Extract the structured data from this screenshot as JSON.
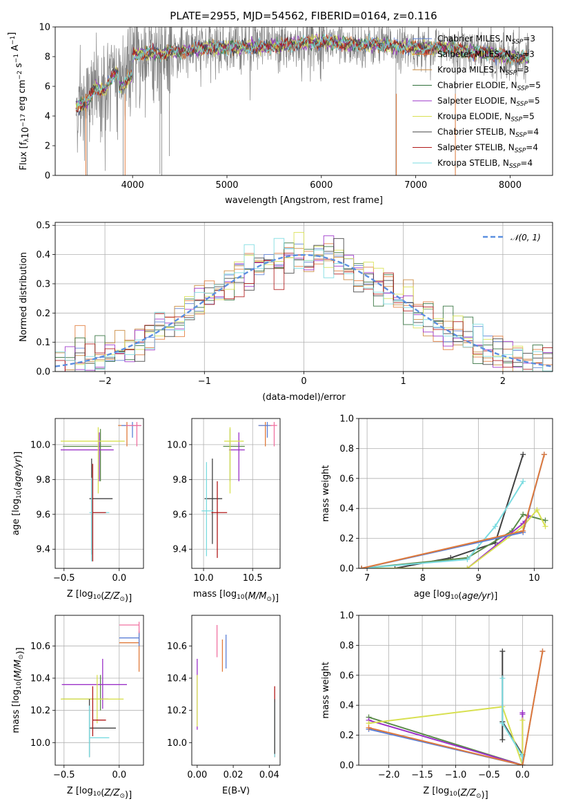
{
  "chart_data": [
    {
      "id": "spectrum",
      "type": "line",
      "title": "PLATE=2955, MJD=54562, FIBERID=0164, z=0.116",
      "xlabel": "wavelength [Angstrom, rest frame]",
      "ylabel": "Flux [f_λ 10^{-17} erg cm^{-2} s^{-1} A^{-1}]",
      "xlim": [
        3180,
        8450
      ],
      "ylim": [
        0,
        10
      ],
      "xticks": [
        4000,
        5000,
        6000,
        7000,
        8000
      ],
      "yticks": [
        0,
        2,
        4,
        6,
        8,
        10
      ],
      "grid": false,
      "legend_position": "top-right",
      "series": [
        {
          "name": "Chabrier MILES, N_SSP=3",
          "color": "#5b7fd6"
        },
        {
          "name": "Salpeter MILES, N_SSP=3",
          "color": "#e07a3a"
        },
        {
          "name": "Kroupa MILES, N_SSP=3",
          "color": "#c8873a"
        },
        {
          "name": "Chabrier ELODIE, N_SSP=5",
          "color": "#2f6f3a"
        },
        {
          "name": "Salpeter ELODIE, N_SSP=5",
          "color": "#9b30c8"
        },
        {
          "name": "Kroupa ELODIE, N_SSP=5",
          "color": "#d8e050"
        },
        {
          "name": "Chabrier STELIB, N_SSP=4",
          "color": "#404040"
        },
        {
          "name": "Salpeter STELIB, N_SSP=4",
          "color": "#b01818"
        },
        {
          "name": "Kroupa STELIB, N_SSP=4",
          "color": "#7adbe0"
        }
      ],
      "data_color": "#808080",
      "model_curve": {
        "x": [
          3400,
          3500,
          3600,
          3700,
          3800,
          3900,
          4000,
          4100,
          4200,
          4300,
          4400,
          4600,
          4800,
          5000,
          5200,
          5400,
          5600,
          5800,
          6000,
          6200,
          6400,
          6600,
          6800,
          7000,
          7200,
          7400,
          7600,
          7800,
          8000,
          8200
        ],
        "y": [
          4.6,
          4.8,
          5.9,
          5.7,
          6.8,
          7.2,
          8.0,
          8.2,
          8.3,
          8.1,
          8.3,
          8.4,
          8.6,
          8.6,
          8.7,
          8.6,
          8.8,
          8.9,
          9.0,
          8.9,
          8.8,
          8.8,
          8.7,
          8.6,
          8.6,
          8.5,
          8.3,
          8.2,
          8.0,
          7.9
        ]
      }
    },
    {
      "id": "residuals",
      "type": "line",
      "xlabel": "(data-model)/error",
      "ylabel": "Normed distribution",
      "xlim": [
        -2.5,
        2.5
      ],
      "ylim": [
        0,
        0.51
      ],
      "xticks": [
        -2,
        -1,
        0,
        1,
        2
      ],
      "yticks": [
        0.0,
        0.1,
        0.2,
        0.3,
        0.4,
        0.5
      ],
      "grid": true,
      "legend_position": "top-right",
      "legend": [
        "𝒩(0, 1)"
      ],
      "normal_color": "#5b8fe0"
    },
    {
      "id": "age-vs-Z",
      "type": "scatter",
      "xlabel": "Z [log10(Z/Z⊙)]",
      "ylabel": "age  [log10(age/yr)]",
      "xlim": [
        -0.58,
        0.22
      ],
      "ylim": [
        9.29,
        10.15
      ],
      "xticks": [
        -0.5,
        0.0
      ],
      "yticks": [
        9.4,
        9.6,
        9.8,
        10.0
      ],
      "grid": true,
      "points": [
        {
          "x": 0.07,
          "y": 10.11,
          "xerr": [
            0.08,
            0.13
          ],
          "yerr": [
            0.12,
            0.02
          ],
          "color": "#e07a3a"
        },
        {
          "x": 0.12,
          "y": 10.11,
          "xerr": [
            0.1,
            0.08
          ],
          "yerr": [
            0.07,
            0.02
          ],
          "color": "#5b7fd6"
        },
        {
          "x": 0.16,
          "y": 10.11,
          "xerr": [
            0.1,
            0.04
          ],
          "yerr": [
            0.12,
            0.02
          ],
          "color": "#f070a0"
        },
        {
          "x": -0.17,
          "y": 9.99,
          "xerr": [
            0.34,
            0.1
          ],
          "yerr": [
            0.2,
            0.1
          ],
          "color": "#5a8a4a"
        },
        {
          "x": -0.18,
          "y": 9.97,
          "xerr": [
            0.35,
            0.13
          ],
          "yerr": [
            0.18,
            0.1
          ],
          "color": "#9b30c8"
        },
        {
          "x": -0.19,
          "y": 10.02,
          "xerr": [
            0.34,
            0.24
          ],
          "yerr": [
            0.3,
            0.08
          ],
          "color": "#d8e050"
        },
        {
          "x": -0.25,
          "y": 9.69,
          "xerr": [
            0.02,
            0.19
          ],
          "yerr": [
            0.32,
            0.23
          ],
          "color": "#404040"
        },
        {
          "x": -0.25,
          "y": 9.61,
          "xerr": [
            0.02,
            0.16
          ],
          "yerr": [
            0.28,
            0.2
          ],
          "color": "#7adbe0"
        },
        {
          "x": -0.24,
          "y": 9.61,
          "xerr": [
            0.0,
            0.12
          ],
          "yerr": [
            0.28,
            0.28
          ],
          "color": "#b01818"
        }
      ]
    },
    {
      "id": "age-vs-mass",
      "type": "scatter",
      "xlabel": "mass [log10(M/M⊙)]",
      "ylabel": "",
      "xlim": [
        9.88,
        10.78
      ],
      "ylim": [
        9.29,
        10.15
      ],
      "xticks": [
        10.0,
        10.5
      ],
      "yticks": [
        9.4,
        9.6,
        9.8,
        10.0
      ],
      "grid": true,
      "points": [
        {
          "x": 10.63,
          "y": 10.11,
          "xerr": [
            0.07,
            0.07
          ],
          "yerr": [
            0.12,
            0.02
          ],
          "color": "#e07a3a"
        },
        {
          "x": 10.65,
          "y": 10.11,
          "xerr": [
            0.09,
            0.04
          ],
          "yerr": [
            0.07,
            0.02
          ],
          "color": "#5b7fd6"
        },
        {
          "x": 10.72,
          "y": 10.11,
          "xerr": [
            0.04,
            0.03
          ],
          "yerr": [
            0.12,
            0.02
          ],
          "color": "#f070a0"
        },
        {
          "x": 10.27,
          "y": 9.99,
          "xerr": [
            0.07,
            0.15
          ],
          "yerr": [
            0.2,
            0.1
          ],
          "color": "#5a8a4a"
        },
        {
          "x": 10.36,
          "y": 9.97,
          "xerr": [
            0.1,
            0.06
          ],
          "yerr": [
            0.18,
            0.1
          ],
          "color": "#9b30c8"
        },
        {
          "x": 10.27,
          "y": 10.02,
          "xerr": [
            0.06,
            0.14
          ],
          "yerr": [
            0.3,
            0.08
          ],
          "color": "#d8e050"
        },
        {
          "x": 10.09,
          "y": 9.69,
          "xerr": [
            0.08,
            0.1
          ],
          "yerr": [
            0.26,
            0.23
          ],
          "color": "#404040"
        },
        {
          "x": 10.03,
          "y": 9.62,
          "xerr": [
            0.05,
            0.07
          ],
          "yerr": [
            0.26,
            0.28
          ],
          "color": "#7adbe0"
        },
        {
          "x": 10.14,
          "y": 9.61,
          "xerr": [
            0.06,
            0.1
          ],
          "yerr": [
            0.26,
            0.18
          ],
          "color": "#b01818"
        }
      ]
    },
    {
      "id": "weight-vs-age",
      "type": "line",
      "xlabel": "age  [log10(age/yr)]",
      "ylabel": "mass weight",
      "xlim": [
        6.85,
        10.33
      ],
      "ylim": [
        0,
        1.0
      ],
      "xticks": [
        7,
        8,
        9,
        10
      ],
      "yticks": [
        0.0,
        0.2,
        0.4,
        0.6,
        0.8,
        1.0
      ],
      "grid": true,
      "series": [
        {
          "color": "#404040",
          "x": [
            7.5,
            8.5,
            9.3,
            9.8
          ],
          "y": [
            0.0,
            0.07,
            0.17,
            0.76
          ]
        },
        {
          "color": "#5a8a4a",
          "x": [
            6.9,
            8.8,
            9.6,
            9.8,
            10.2
          ],
          "y": [
            0.0,
            0.07,
            0.25,
            0.36,
            0.32
          ]
        },
        {
          "color": "#9b30c8",
          "x": [
            6.9,
            8.8,
            9.8,
            9.9
          ],
          "y": [
            0.0,
            0.0,
            0.3,
            0.35
          ]
        },
        {
          "color": "#d8e050",
          "x": [
            6.9,
            8.8,
            9.8,
            10.05,
            10.2
          ],
          "y": [
            0.0,
            0.0,
            0.28,
            0.39,
            0.28
          ]
        },
        {
          "color": "#7adbe0",
          "x": [
            6.9,
            8.8,
            9.3,
            9.8
          ],
          "y": [
            0.0,
            0.06,
            0.28,
            0.58
          ]
        },
        {
          "color": "#5b7fd6",
          "x": [
            6.9,
            9.8,
            10.18
          ],
          "y": [
            0.0,
            0.24,
            0.76
          ]
        },
        {
          "color": "#e07a3a",
          "x": [
            6.9,
            9.8,
            10.18
          ],
          "y": [
            0.0,
            0.25,
            0.76
          ]
        }
      ]
    },
    {
      "id": "mass-vs-Z",
      "type": "scatter",
      "xlabel": "Z [log10(Z/Z⊙)]",
      "ylabel": "mass [log10(M/M⊙)]",
      "xlim": [
        -0.58,
        0.22
      ],
      "ylim": [
        9.86,
        10.79
      ],
      "xticks": [
        -0.5,
        0.0
      ],
      "yticks": [
        10.0,
        10.2,
        10.4,
        10.6
      ],
      "grid": true,
      "points": [
        {
          "x": 0.18,
          "y": 10.62,
          "xerr": [
            0.18,
            0.0
          ],
          "yerr": [
            0.18,
            0.07
          ],
          "color": "#e07a3a"
        },
        {
          "x": 0.18,
          "y": 10.65,
          "xerr": [
            0.18,
            0.0
          ],
          "yerr": [
            0.05,
            0.04
          ],
          "color": "#5b7fd6"
        },
        {
          "x": 0.18,
          "y": 10.73,
          "xerr": [
            0.18,
            0.0
          ],
          "yerr": [
            0.05,
            0.02
          ],
          "color": "#f070a0"
        },
        {
          "x": -0.17,
          "y": 10.27,
          "xerr": [
            0.35,
            0.07
          ],
          "yerr": [
            0.07,
            0.15
          ],
          "color": "#5a8a4a"
        },
        {
          "x": -0.15,
          "y": 10.36,
          "xerr": [
            0.37,
            0.22
          ],
          "yerr": [
            0.15,
            0.16
          ],
          "color": "#9b30c8"
        },
        {
          "x": -0.2,
          "y": 10.27,
          "xerr": [
            0.33,
            0.24
          ],
          "yerr": [
            0.15,
            0.15
          ],
          "color": "#d8e050"
        },
        {
          "x": -0.27,
          "y": 10.09,
          "xerr": [
            0.0,
            0.24
          ],
          "yerr": [
            0.18,
            0.18
          ],
          "color": "#404040"
        },
        {
          "x": -0.27,
          "y": 10.03,
          "xerr": [
            0.0,
            0.18
          ],
          "yerr": [
            0.12,
            0.2
          ],
          "color": "#7adbe0"
        },
        {
          "x": -0.24,
          "y": 10.14,
          "xerr": [
            0.0,
            0.12
          ],
          "yerr": [
            0.1,
            0.21
          ],
          "color": "#b01818"
        }
      ]
    },
    {
      "id": "mass-vs-EBV",
      "type": "scatter",
      "xlabel": "E(B-V)",
      "ylabel": "",
      "xlim": [
        -0.003,
        0.046
      ],
      "ylim": [
        9.86,
        10.79
      ],
      "xticks": [
        0.0,
        0.02,
        0.04
      ],
      "yticks": [
        10.0,
        10.2,
        10.4,
        10.6
      ],
      "grid": false,
      "points": [
        {
          "x": 0.0,
          "y": 10.3,
          "yerr": [
            0.22,
            0.22
          ],
          "color": "#9b30c8"
        },
        {
          "x": 0.0,
          "y": 10.28,
          "yerr": [
            0.18,
            0.14
          ],
          "color": "#d8e050"
        },
        {
          "x": 0.011,
          "y": 10.63,
          "yerr": [
            0.1,
            0.1
          ],
          "color": "#f070a0"
        },
        {
          "x": 0.014,
          "y": 10.55,
          "yerr": [
            0.11,
            0.09
          ],
          "color": "#e07a3a"
        },
        {
          "x": 0.016,
          "y": 10.56,
          "yerr": [
            0.1,
            0.11
          ],
          "color": "#5b7fd6"
        },
        {
          "x": 0.043,
          "y": 10.14,
          "yerr": [
            0.23,
            0.21
          ],
          "color": "#b01818"
        },
        {
          "x": 0.043,
          "y": 10.03,
          "yerr": [
            0.12,
            0.22
          ],
          "color": "#7adbe0"
        },
        {
          "x": 0.043,
          "y": 10.09,
          "yerr": [
            0.16,
            0.18
          ],
          "color": "#404040"
        }
      ]
    },
    {
      "id": "weight-vs-Z",
      "type": "line",
      "xlabel": "Z [log10(Z/Z⊙)]",
      "ylabel": "mass weight",
      "xlim": [
        -2.45,
        0.45
      ],
      "ylim": [
        0,
        1.0
      ],
      "xticks": [
        -2.0,
        -1.5,
        -1.0,
        -0.5,
        0.0
      ],
      "yticks": [
        0.0,
        0.2,
        0.4,
        0.6,
        0.8,
        1.0
      ],
      "grid": true,
      "series": [
        {
          "color": "#404040",
          "x": [
            -0.3,
            -0.3,
            -0.3,
            0.0,
            0.0
          ],
          "y": [
            0.76,
            0.17,
            0.29,
            0.07,
            0.0
          ]
        },
        {
          "color": "#5a8a4a",
          "x": [
            -2.3,
            0.0,
            0.0
          ],
          "y": [
            0.32,
            0.0,
            0.07
          ]
        },
        {
          "color": "#9b30c8",
          "x": [
            -2.3,
            0.0,
            0.0,
            0.0
          ],
          "y": [
            0.3,
            0.0,
            0.35,
            0.34
          ]
        },
        {
          "color": "#d8e050",
          "x": [
            -2.3,
            -0.3,
            0.0,
            0.0
          ],
          "y": [
            0.28,
            0.39,
            0.0,
            0.3
          ]
        },
        {
          "color": "#7adbe0",
          "x": [
            -0.3,
            -0.3,
            0.0,
            0.0
          ],
          "y": [
            0.58,
            0.28,
            0.06,
            0.0
          ]
        },
        {
          "color": "#5b7fd6",
          "x": [
            -2.3,
            0.0,
            0.3
          ],
          "y": [
            0.24,
            0.0,
            0.76
          ]
        },
        {
          "color": "#e07a3a",
          "x": [
            -2.3,
            0.0,
            0.3
          ],
          "y": [
            0.25,
            0.0,
            0.76
          ]
        }
      ]
    }
  ]
}
